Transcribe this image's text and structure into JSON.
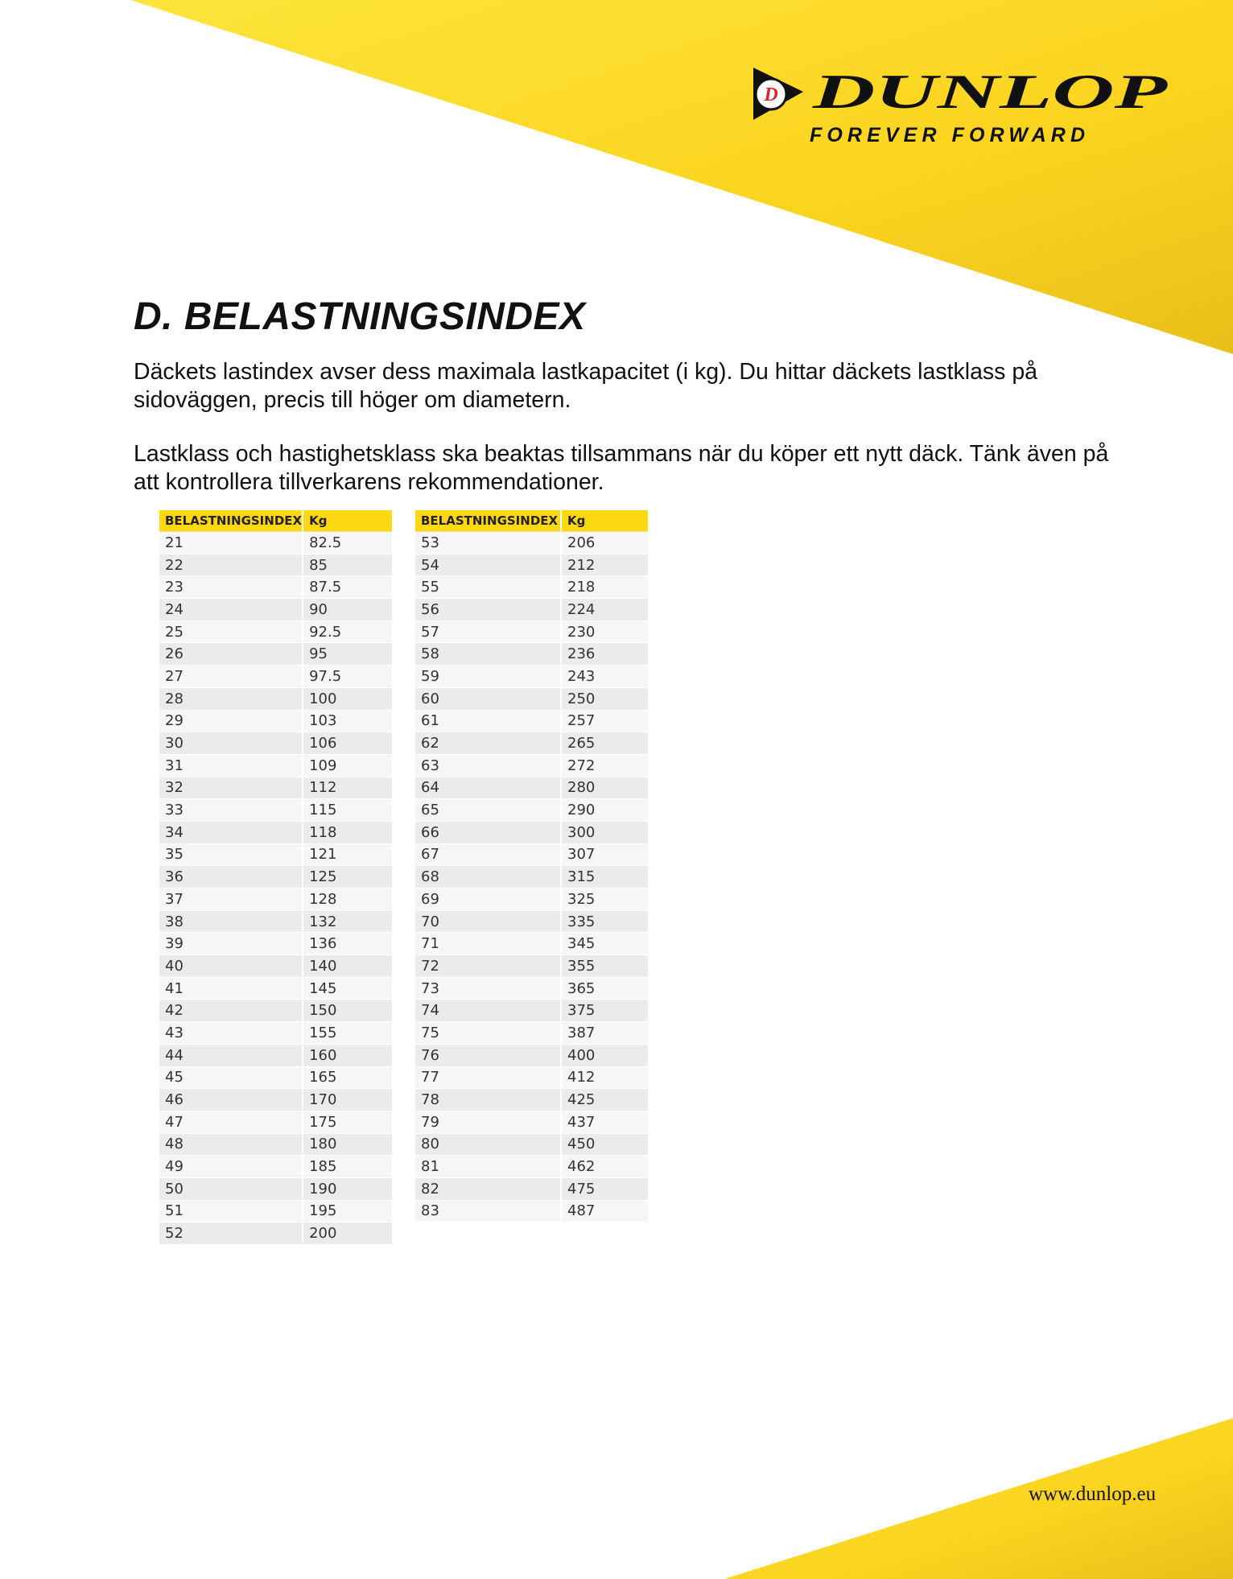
{
  "brand": {
    "name": "DUNLOP",
    "tagline": "FOREVER FORWARD",
    "colors": {
      "yellow": "#ffd814",
      "red": "#e3202b",
      "black": "#111111"
    }
  },
  "title": "D. BELASTNINGSINDEX",
  "paragraphs": [
    "Däckets lastindex avser dess maximala lastkapacitet (i kg). Du hittar däckets lastklass på sidoväggen, precis till höger om diametern.",
    "Lastklass och hastighetsklass ska beaktas tillsammans när du köper ett nytt däck. Tänk även på att kontrollera tillverkarens rekommendationer."
  ],
  "tables": [
    {
      "headers": [
        "BELASTNINGSINDEX",
        "Kg"
      ],
      "rows": [
        [
          "21",
          "82.5"
        ],
        [
          "22",
          "85"
        ],
        [
          "23",
          "87.5"
        ],
        [
          "24",
          "90"
        ],
        [
          "25",
          "92.5"
        ],
        [
          "26",
          "95"
        ],
        [
          "27",
          "97.5"
        ],
        [
          "28",
          "100"
        ],
        [
          "29",
          "103"
        ],
        [
          "30",
          "106"
        ],
        [
          "31",
          "109"
        ],
        [
          "32",
          "112"
        ],
        [
          "33",
          "115"
        ],
        [
          "34",
          "118"
        ],
        [
          "35",
          "121"
        ],
        [
          "36",
          "125"
        ],
        [
          "37",
          "128"
        ],
        [
          "38",
          "132"
        ],
        [
          "39",
          "136"
        ],
        [
          "40",
          "140"
        ],
        [
          "41",
          "145"
        ],
        [
          "42",
          "150"
        ],
        [
          "43",
          "155"
        ],
        [
          "44",
          "160"
        ],
        [
          "45",
          "165"
        ],
        [
          "46",
          "170"
        ],
        [
          "47",
          "175"
        ],
        [
          "48",
          "180"
        ],
        [
          "49",
          "185"
        ],
        [
          "50",
          "190"
        ],
        [
          "51",
          "195"
        ],
        [
          "52",
          "200"
        ]
      ]
    },
    {
      "headers": [
        "BELASTNINGSINDEX",
        "Kg"
      ],
      "rows": [
        [
          "53",
          "206"
        ],
        [
          "54",
          "212"
        ],
        [
          "55",
          "218"
        ],
        [
          "56",
          "224"
        ],
        [
          "57",
          "230"
        ],
        [
          "58",
          "236"
        ],
        [
          "59",
          "243"
        ],
        [
          "60",
          "250"
        ],
        [
          "61",
          "257"
        ],
        [
          "62",
          "265"
        ],
        [
          "63",
          "272"
        ],
        [
          "64",
          "280"
        ],
        [
          "65",
          "290"
        ],
        [
          "66",
          "300"
        ],
        [
          "67",
          "307"
        ],
        [
          "68",
          "315"
        ],
        [
          "69",
          "325"
        ],
        [
          "70",
          "335"
        ],
        [
          "71",
          "345"
        ],
        [
          "72",
          "355"
        ],
        [
          "73",
          "365"
        ],
        [
          "74",
          "375"
        ],
        [
          "75",
          "387"
        ],
        [
          "76",
          "400"
        ],
        [
          "77",
          "412"
        ],
        [
          "78",
          "425"
        ],
        [
          "79",
          "437"
        ],
        [
          "80",
          "450"
        ],
        [
          "81",
          "462"
        ],
        [
          "82",
          "475"
        ],
        [
          "83",
          "487"
        ]
      ]
    }
  ],
  "footer": {
    "url": "www.dunlop.eu"
  }
}
